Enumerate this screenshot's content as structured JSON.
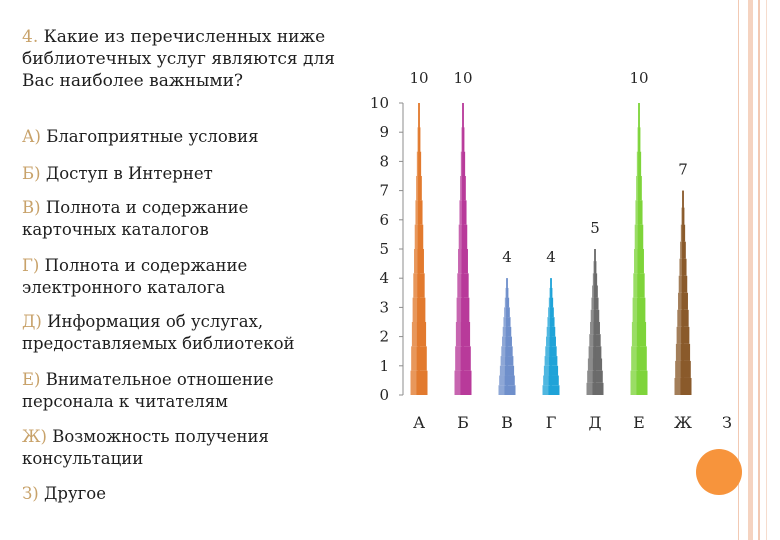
{
  "question": {
    "number": "4.",
    "text": "Какие из перечисленных ниже библиотечных услуг являются для Вас наиболее важными?"
  },
  "options": [
    {
      "letter": "А)",
      "text": "Благоприятные условия"
    },
    {
      "letter": "Б)",
      "text": "Доступ в Интернет"
    },
    {
      "letter": "В)",
      "text": "Полнота и содержание карточных каталогов"
    },
    {
      "letter": "Г)",
      "text": "Полнота и содержание электронного каталога"
    },
    {
      "letter": "Д)",
      "text": "Информация об услугах, предоставляемых библиотекой"
    },
    {
      "letter": "Е)",
      "text": "Внимательное отношение персонала к читателям"
    },
    {
      "letter": "Ж)",
      "text": "Возможность получения консультации"
    },
    {
      "letter": "З)",
      "text": "Другое"
    }
  ],
  "chart_data": {
    "type": "bar",
    "bar_shape": "cone",
    "categories": [
      "А",
      "Б",
      "В",
      "Г",
      "Д",
      "Е",
      "Ж",
      "З"
    ],
    "values": [
      10,
      10,
      4,
      4,
      5,
      10,
      7,
      0
    ],
    "data_labels": [
      "10",
      "10",
      "4",
      "4",
      "5",
      "10",
      "7",
      ""
    ],
    "colors": [
      "#e27a2e",
      "#b83a9a",
      "#6f8fcb",
      "#1fa3d8",
      "#6b6b6b",
      "#7ed43a",
      "#8a5a2b",
      "#999999"
    ],
    "ylim": [
      0,
      10
    ],
    "yticks": [
      "0",
      "1",
      "2",
      "3",
      "4",
      "5",
      "6",
      "7",
      "8",
      "9",
      "10"
    ],
    "grid": false,
    "legend": "none"
  },
  "decor": {
    "circle_color": "#f7943c",
    "stripe_color": "#f2c4ab"
  }
}
